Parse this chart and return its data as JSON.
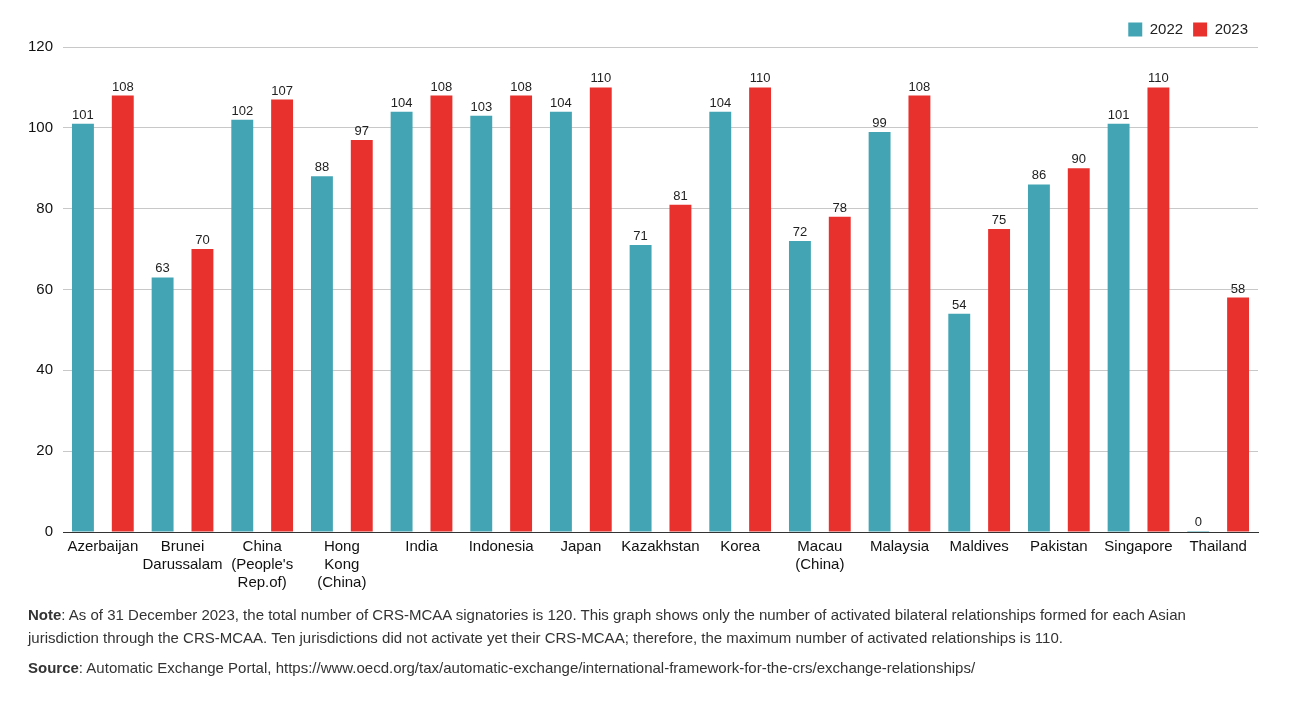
{
  "chart_data": {
    "type": "bar",
    "categories": [
      "Azerbaijan",
      "Brunei Darussalam",
      "China (People's Rep.of)",
      "Hong Kong (China)",
      "India",
      "Indonesia",
      "Japan",
      "Kazakhstan",
      "Korea",
      "Macau (China)",
      "Malaysia",
      "Maldives",
      "Pakistan",
      "Singapore",
      "Thailand"
    ],
    "series": [
      {
        "name": "2022",
        "color": "#43a5b4",
        "values": [
          101,
          63,
          102,
          88,
          104,
          103,
          104,
          71,
          104,
          72,
          99,
          54,
          86,
          101,
          0
        ]
      },
      {
        "name": "2023",
        "color": "#e8312d",
        "values": [
          108,
          70,
          107,
          97,
          108,
          108,
          110,
          81,
          110,
          78,
          108,
          75,
          90,
          110,
          58
        ]
      }
    ],
    "ylim": [
      0,
      120
    ],
    "yticks": [
      0,
      20,
      40,
      60,
      80,
      100,
      120
    ],
    "grid": "y",
    "legend": "top right",
    "data_labels": true,
    "annotations": [
      "Note: As of 31 December 2023, the total number of CRS-MCAA signatories is 120. This graph shows only the number of activated bilateral relationships formed for each Asian jurisdiction through the CRS-MCAA. Ten jurisdictions did not activate yet their CRS-MCAA; therefore, the maximum number of activated relationships is 110.",
      "Source: Automatic Exchange Portal, https://www.oecd.org/tax/automatic-exchange/international-framework-for-the-crs/exchange-relationships/"
    ]
  }
}
